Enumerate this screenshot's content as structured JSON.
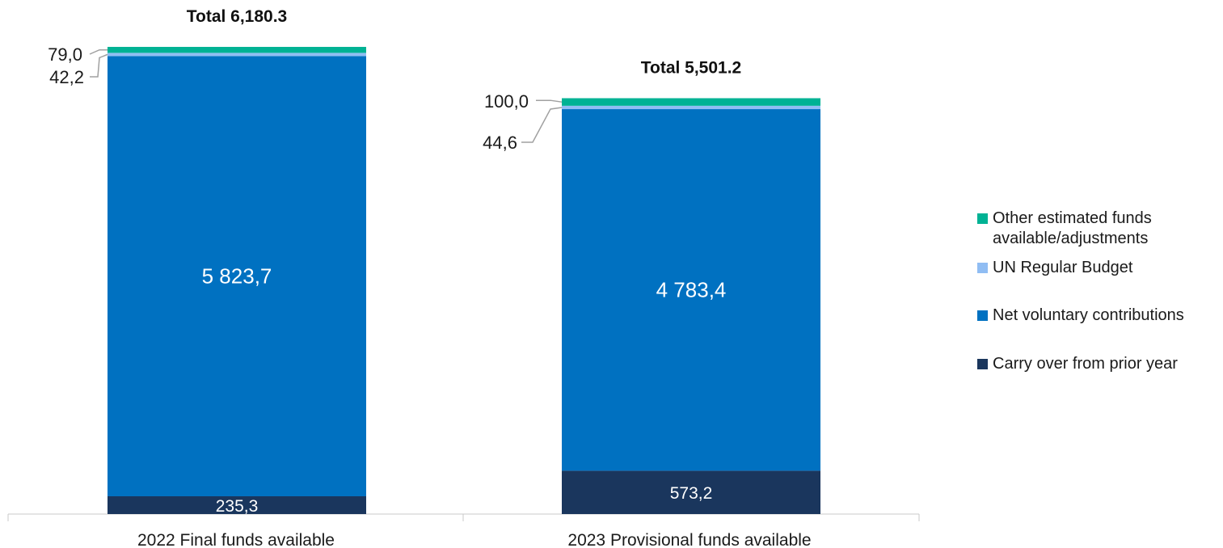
{
  "chart_data": {
    "type": "bar",
    "stacked": true,
    "categories": [
      "2022 Final funds available",
      "2023 Provisional funds available"
    ],
    "totals": [
      "Total 6,180.3",
      "Total 5,501.2"
    ],
    "series": [
      {
        "name": "Carry over from prior year",
        "color": "#1a365d",
        "values": [
          235.3,
          573.2
        ],
        "labels": [
          "235,3",
          "573,2"
        ]
      },
      {
        "name": "Net voluntary contributions",
        "color": "#0071c1",
        "values": [
          5823.7,
          4783.4
        ],
        "labels": [
          "5 823,7",
          "4 783,4"
        ]
      },
      {
        "name": "UN Regular Budget",
        "color": "#90bdf3",
        "values": [
          42.2,
          44.6
        ],
        "labels": [
          "42,2",
          "44,6"
        ]
      },
      {
        "name": "Other estimated funds available/adjustments",
        "color": "#00b294",
        "values": [
          79.0,
          100.0
        ],
        "labels": [
          "79,0",
          "100,0"
        ]
      }
    ],
    "legend": {
      "position": "right",
      "items": [
        {
          "label": "Other estimated funds",
          "label2": "available/adjustments",
          "color": "#00b294"
        },
        {
          "label": "UN Regular Budget",
          "label2": "",
          "color": "#90bdf3"
        },
        {
          "label": "Net voluntary contributions",
          "label2": "",
          "color": "#0071c1"
        },
        {
          "label": "Carry over from prior year",
          "label2": "",
          "color": "#1a365d"
        }
      ]
    }
  }
}
